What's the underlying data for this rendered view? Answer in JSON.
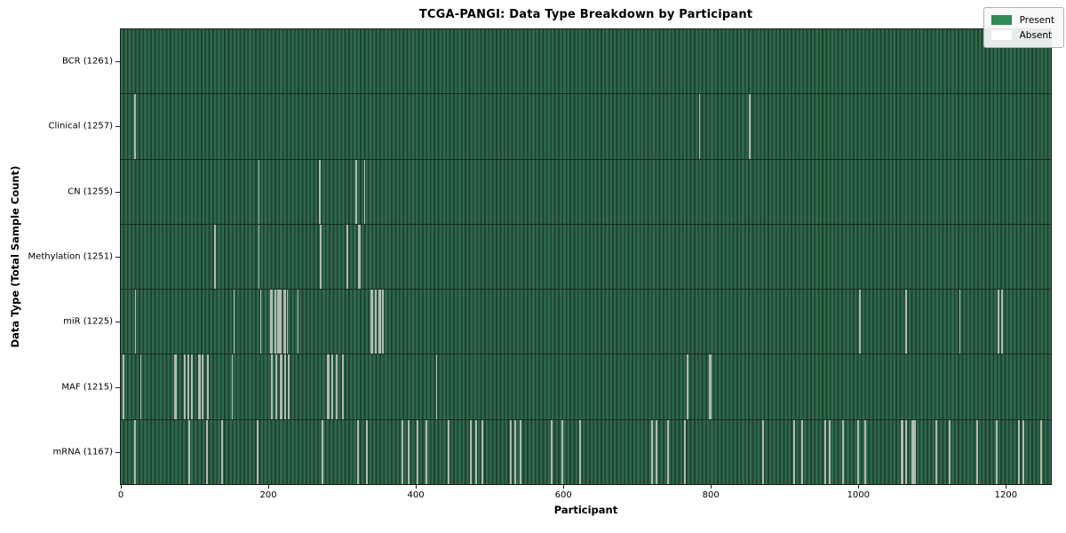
{
  "figure": {
    "title": "TCGA-PANGI: Data Type Breakdown by Participant",
    "xlabel": "Participant",
    "ylabel": "Data Type (Total Sample Count)"
  },
  "legend": {
    "items": [
      {
        "label": "Present",
        "color": "#2e8b57"
      },
      {
        "label": "Absent",
        "color": "#ffffff"
      }
    ]
  },
  "colors": {
    "present_fill": "#2e8b57",
    "stripe_light": "#2e694a",
    "stripe_dark": "#1e4330",
    "absent_line": "#b2bab2",
    "row_divider": "#162c1f",
    "plot_border": "#1c1c1c"
  },
  "chart_data": {
    "type": "heatmap",
    "title": "TCGA-PANGI: Data Type Breakdown by Participant",
    "xlabel": "Participant",
    "ylabel": "Data Type (Total Sample Count)",
    "legend_entries": [
      "Present",
      "Absent"
    ],
    "legend_position": "upper right",
    "grid": false,
    "x_ticks": [
      0,
      200,
      400,
      600,
      800,
      1000,
      1200
    ],
    "x_range": [
      0,
      1261
    ],
    "n_participants": 1261,
    "rows": [
      {
        "data_type": "BCR",
        "label": "BCR (1261)",
        "total_samples": 1261,
        "absent_participants": []
      },
      {
        "data_type": "Clinical",
        "label": "Clinical (1257)",
        "total_samples": 1257,
        "absent_participants": [
          18,
          19,
          784,
          852
        ]
      },
      {
        "data_type": "CN",
        "label": "CN (1255)",
        "total_samples": 1255,
        "absent_participants": [
          187,
          268,
          269,
          318,
          319,
          330
        ]
      },
      {
        "data_type": "Methylation",
        "label": "Methylation (1251)",
        "total_samples": 1251,
        "absent_participants": [
          126,
          127,
          187,
          270,
          271,
          306,
          307,
          322,
          323,
          324
        ]
      },
      {
        "data_type": "miR",
        "label": "miR (1225)",
        "total_samples": 1225,
        "absent_participants": [
          19,
          153,
          189,
          202,
          203,
          205,
          208,
          209,
          212,
          213,
          214,
          216,
          217,
          220,
          221,
          222,
          225,
          240,
          339,
          340,
          341,
          344,
          345,
          349,
          350,
          351,
          354,
          355,
          1001,
          1002,
          1064,
          1137,
          1189,
          1190,
          1193,
          1194
        ]
      },
      {
        "data_type": "MAF",
        "label": "MAF (1215)",
        "total_samples": 1215,
        "absent_participants": [
          3,
          26,
          72,
          73,
          74,
          85,
          86,
          87,
          90,
          91,
          95,
          96,
          105,
          106,
          107,
          110,
          111,
          117,
          118,
          150,
          204,
          205,
          210,
          211,
          216,
          217,
          218,
          222,
          223,
          226,
          227,
          280,
          281,
          286,
          287,
          292,
          293,
          300,
          301,
          427,
          767,
          768,
          797,
          798,
          799,
          800
        ]
      },
      {
        "data_type": "mRNA",
        "label": "mRNA (1167)",
        "total_samples": 1167,
        "absent_participants": [
          18,
          19,
          92,
          93,
          116,
          117,
          136,
          137,
          184,
          185,
          272,
          273,
          320,
          321,
          332,
          333,
          380,
          381,
          389,
          390,
          401,
          402,
          413,
          414,
          443,
          444,
          473,
          474,
          481,
          482,
          489,
          490,
          527,
          528,
          529,
          533,
          534,
          535,
          541,
          542,
          583,
          584,
          597,
          598,
          621,
          622,
          719,
          720,
          725,
          726,
          741,
          742,
          763,
          764,
          870,
          871,
          912,
          913,
          922,
          923,
          954,
          955,
          960,
          961,
          978,
          979,
          998,
          999,
          1008,
          1009,
          1058,
          1059,
          1060,
          1064,
          1065,
          1072,
          1073,
          1074,
          1076,
          1077,
          1104,
          1105,
          1122,
          1123,
          1160,
          1161,
          1186,
          1187,
          1216,
          1217,
          1222,
          1223,
          1247,
          1248
        ]
      }
    ]
  }
}
